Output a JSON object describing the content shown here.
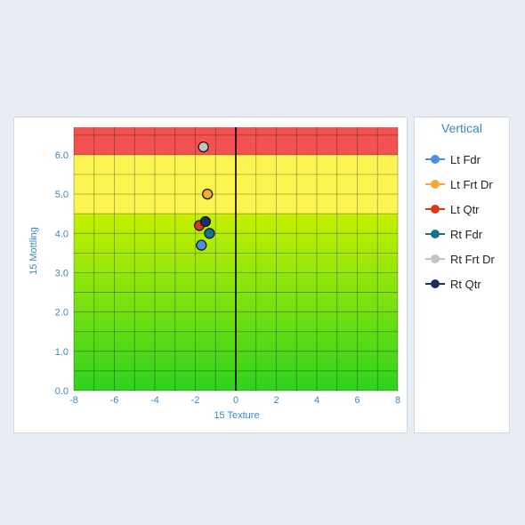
{
  "chart_data": {
    "type": "scatter",
    "xlabel": "15 Texture",
    "ylabel": "15 Mottling",
    "xlim": [
      -8,
      8
    ],
    "ylim": [
      0,
      6.7
    ],
    "x_ticks": [
      "-8",
      "-6",
      "-4",
      "-2",
      "0",
      "2",
      "4",
      "6",
      "8"
    ],
    "y_ticks": [
      "0.0",
      "1.0",
      "2.0",
      "3.0",
      "4.0",
      "5.0",
      "6.0"
    ],
    "grid": true,
    "zones": [
      {
        "from": 0,
        "to": 4.5,
        "color_top": "#c7f000",
        "color_bottom": "#2fd11f"
      },
      {
        "from": 4.5,
        "to": 6.0,
        "color": "#fbf451"
      },
      {
        "from": 6.0,
        "to": 6.7,
        "color": "#f45252"
      }
    ],
    "legend": {
      "title": "Vertical",
      "placement": "right"
    },
    "series": [
      {
        "name": "Lt Fdr",
        "color": "#4a90e2",
        "x": -1.7,
        "y": 3.7
      },
      {
        "name": "Lt Frt Dr",
        "color": "#f9a83a",
        "x": -1.4,
        "y": 5.0
      },
      {
        "name": "Lt Qtr",
        "color": "#d83a18",
        "x": -1.8,
        "y": 4.2
      },
      {
        "name": "Rt Fdr",
        "color": "#17708f",
        "x": -1.3,
        "y": 4.0
      },
      {
        "name": "Rt Frt Dr",
        "color": "#c3c3c3",
        "x": -1.6,
        "y": 6.2
      },
      {
        "name": "Rt Qtr",
        "color": "#1c2f5e",
        "x": -1.5,
        "y": 4.3
      }
    ]
  }
}
